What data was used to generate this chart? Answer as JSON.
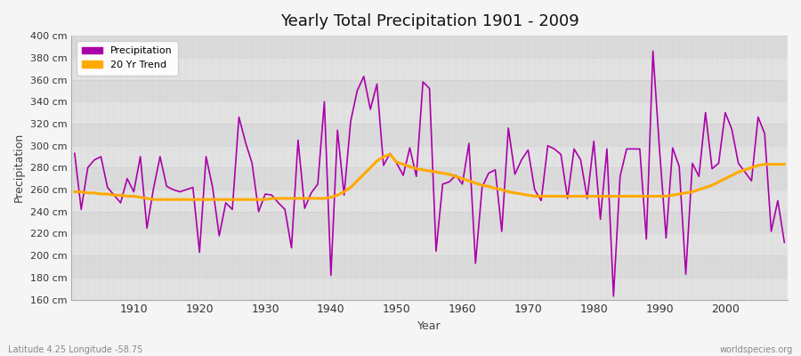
{
  "title": "Yearly Total Precipitation 1901 - 2009",
  "xlabel": "Year",
  "ylabel": "Precipitation",
  "footnote_left": "Latitude 4.25 Longitude -58.75",
  "footnote_right": "worldspecies.org",
  "bg_color": "#f0f0f0",
  "plot_bg_color": "#e8e8e8",
  "band_color_light": "#e0e0e0",
  "band_color_dark": "#d0d0d0",
  "grid_color": "#c8c8c8",
  "line_color": "#aa00aa",
  "trend_color": "#ffaa00",
  "ylim": [
    160,
    400
  ],
  "ytick_step": 20,
  "years": [
    1901,
    1902,
    1903,
    1904,
    1905,
    1906,
    1907,
    1908,
    1909,
    1910,
    1911,
    1912,
    1913,
    1914,
    1915,
    1916,
    1917,
    1918,
    1919,
    1920,
    1921,
    1922,
    1923,
    1924,
    1925,
    1926,
    1927,
    1928,
    1929,
    1930,
    1931,
    1932,
    1933,
    1934,
    1935,
    1936,
    1937,
    1938,
    1939,
    1940,
    1941,
    1942,
    1943,
    1944,
    1945,
    1946,
    1947,
    1948,
    1949,
    1950,
    1951,
    1952,
    1953,
    1954,
    1955,
    1956,
    1957,
    1958,
    1959,
    1960,
    1961,
    1962,
    1963,
    1964,
    1965,
    1966,
    1967,
    1968,
    1969,
    1970,
    1971,
    1972,
    1973,
    1974,
    1975,
    1976,
    1977,
    1978,
    1979,
    1980,
    1981,
    1982,
    1983,
    1984,
    1985,
    1986,
    1987,
    1988,
    1989,
    1990,
    1991,
    1992,
    1993,
    1994,
    1995,
    1996,
    1997,
    1998,
    1999,
    2000,
    2001,
    2002,
    2003,
    2004,
    2005,
    2006,
    2007,
    2008,
    2009
  ],
  "precip": [
    293,
    242,
    280,
    287,
    290,
    262,
    255,
    248,
    270,
    258,
    290,
    225,
    261,
    290,
    263,
    260,
    258,
    260,
    262,
    203,
    290,
    262,
    218,
    248,
    242,
    326,
    303,
    284,
    240,
    256,
    255,
    248,
    242,
    207,
    305,
    243,
    257,
    265,
    340,
    182,
    314,
    255,
    322,
    350,
    363,
    333,
    356,
    282,
    293,
    284,
    273,
    298,
    272,
    358,
    352,
    204,
    265,
    267,
    273,
    265,
    302,
    193,
    262,
    275,
    278,
    222,
    316,
    274,
    287,
    296,
    260,
    250,
    300,
    297,
    292,
    252,
    297,
    287,
    252,
    304,
    233,
    297,
    163,
    272,
    297,
    297,
    297,
    215,
    386,
    297,
    216,
    298,
    281,
    183,
    284,
    272,
    330,
    279,
    284,
    330,
    315,
    284,
    276,
    268,
    326,
    311,
    222,
    250,
    212
  ],
  "trend": [
    258,
    258,
    257,
    257,
    256,
    256,
    255,
    255,
    254,
    254,
    253,
    252,
    251,
    251,
    251,
    251,
    251,
    251,
    251,
    251,
    251,
    251,
    251,
    251,
    251,
    251,
    251,
    251,
    251,
    251,
    252,
    252,
    252,
    252,
    252,
    252,
    252,
    252,
    252,
    253,
    255,
    258,
    262,
    268,
    274,
    280,
    286,
    290,
    292,
    285,
    283,
    281,
    279,
    278,
    277,
    276,
    275,
    274,
    272,
    270,
    268,
    266,
    264,
    263,
    261,
    260,
    258,
    257,
    256,
    255,
    254,
    254,
    254,
    254,
    254,
    254,
    254,
    254,
    254,
    254,
    254,
    254,
    254,
    254,
    254,
    254,
    254,
    254,
    254,
    254,
    254,
    255,
    256,
    257,
    258,
    260,
    262,
    264,
    267,
    270,
    273,
    276,
    278,
    280,
    282,
    283,
    283,
    283,
    283
  ]
}
